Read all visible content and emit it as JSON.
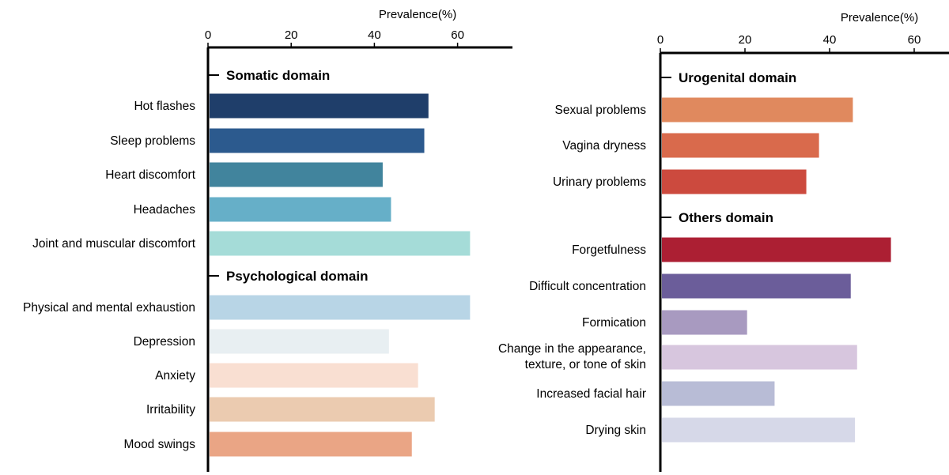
{
  "chart_data": [
    {
      "type": "bar",
      "orientation": "horizontal",
      "axis_title": "Prevalence(%)",
      "xlim": [
        0,
        70
      ],
      "xticks": [
        0,
        20,
        40,
        60
      ],
      "groups": [
        {
          "name": "Somatic domain",
          "items": [
            {
              "label": "Hot flashes",
              "value": 53,
              "color": "#1f3e6a"
            },
            {
              "label": "Sleep problems",
              "value": 52,
              "color": "#2c5a8e"
            },
            {
              "label": "Heart discomfort",
              "value": 42,
              "color": "#41849d"
            },
            {
              "label": "Headaches",
              "value": 44,
              "color": "#66afc8"
            },
            {
              "label": "Joint and muscular discomfort",
              "value": 63,
              "color": "#a5dcd8"
            }
          ]
        },
        {
          "name": "Psychological domain",
          "items": [
            {
              "label": "Physical and mental exhaustion",
              "value": 63,
              "color": "#b8d5e6"
            },
            {
              "label": "Depression",
              "value": 43.5,
              "color": "#e8eff2"
            },
            {
              "label": "Anxiety",
              "value": 50.5,
              "color": "#f9dfd2"
            },
            {
              "label": "Irritability",
              "value": 54.5,
              "color": "#ebcbb0"
            },
            {
              "label": "Mood swings",
              "value": 49,
              "color": "#eaa585"
            }
          ]
        }
      ]
    },
    {
      "type": "bar",
      "orientation": "horizontal",
      "axis_title": "Prevalence(%)",
      "xlim": [
        0,
        70
      ],
      "xticks": [
        0,
        20,
        40,
        60
      ],
      "groups": [
        {
          "name": "Urogenital  domain",
          "items": [
            {
              "label": "Sexual problems",
              "value": 45.5,
              "color": "#e0895e"
            },
            {
              "label": "Vagina dryness",
              "value": 37.5,
              "color": "#d96a4c"
            },
            {
              "label": "Urinary problems",
              "value": 34.5,
              "color": "#cc4a3e"
            }
          ]
        },
        {
          "name": "Others domain",
          "items": [
            {
              "label": "Forgetfulness",
              "value": 54.5,
              "color": "#ac1f33"
            },
            {
              "label": "Difficult concentration",
              "value": 45,
              "color": "#6b5d9a"
            },
            {
              "label": "Formication",
              "value": 20.5,
              "color": "#a89ac0"
            },
            {
              "label": [
                "Change in the appearance,",
                "texture, or tone of skin"
              ],
              "value": 46.5,
              "color": "#d7c6de"
            },
            {
              "label": "Increased facial hair",
              "value": 27,
              "color": "#b8bcd6"
            },
            {
              "label": "Drying skin",
              "value": 46,
              "color": "#d6d8e8"
            }
          ]
        }
      ]
    }
  ]
}
